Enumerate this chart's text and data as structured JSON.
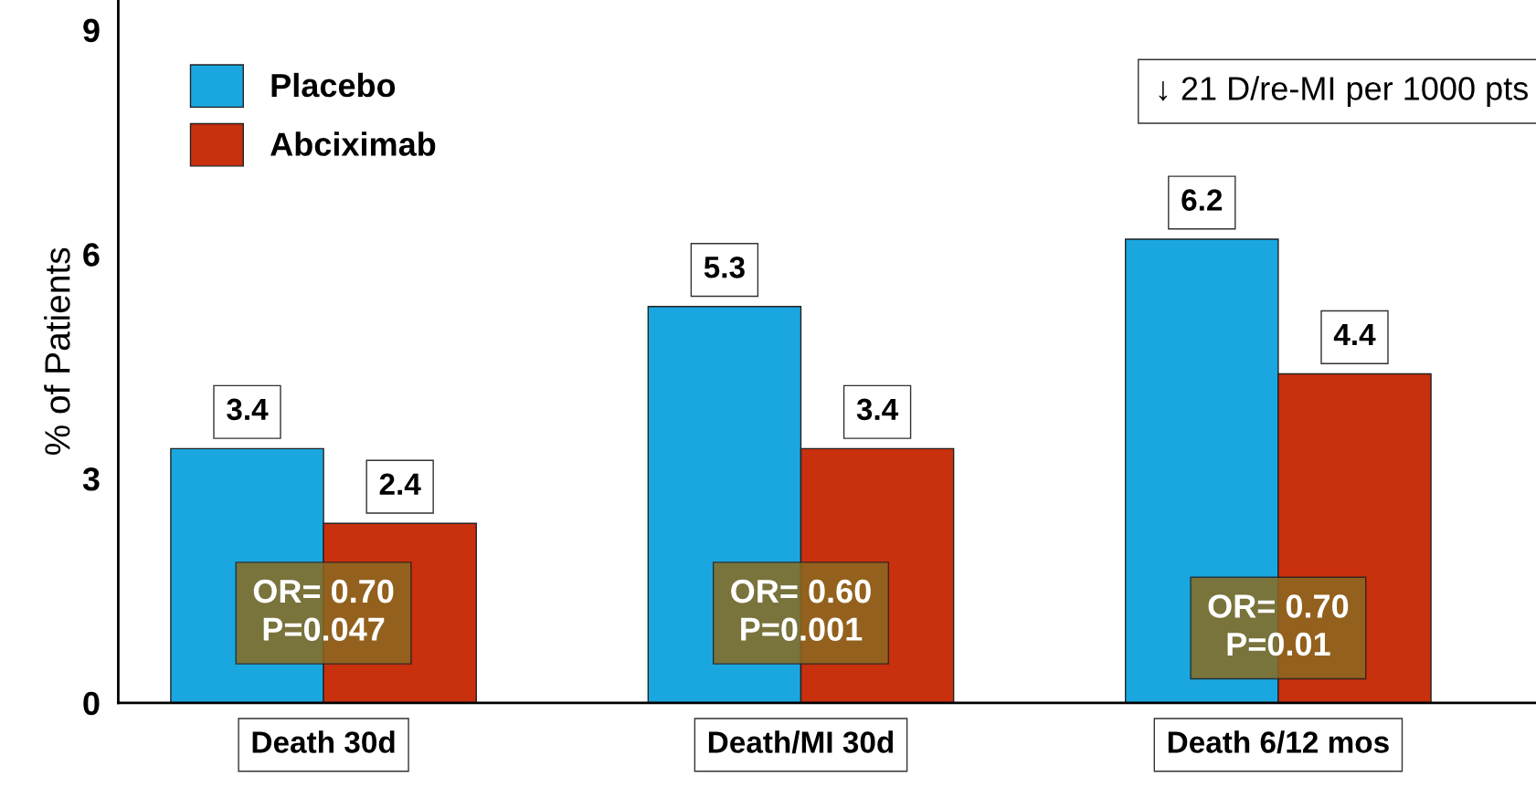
{
  "chart_data": {
    "type": "bar",
    "ylabel": "% of Patients",
    "categories": [
      "Death 30d",
      "Death/MI 30d",
      "Death 6/12 mos"
    ],
    "series": [
      {
        "name": "Placebo",
        "color": "#1aa7e0",
        "values": [
          3.4,
          5.3,
          6.2
        ]
      },
      {
        "name": "Abciximab",
        "color": "#c8300e",
        "values": [
          2.4,
          3.4,
          4.4
        ]
      }
    ],
    "ylim": [
      0,
      9.4
    ],
    "yticks": [
      0,
      3,
      6,
      9
    ],
    "grid": false,
    "legend": "top left",
    "data_labels": true,
    "annotations": [
      {
        "text": "OR= 0.70\nP=0.047",
        "x": "Death 30d",
        "y": 1.2
      },
      {
        "text": "OR= 0.60\nP=0.001",
        "x": "Death/MI 30d",
        "y": 1.2
      },
      {
        "text": "OR= 0.70\nP=0.01",
        "x": "Death 6/12 mos",
        "y": 1.0
      },
      "↓ 21 D/re-MI per 1000 pts"
    ]
  }
}
